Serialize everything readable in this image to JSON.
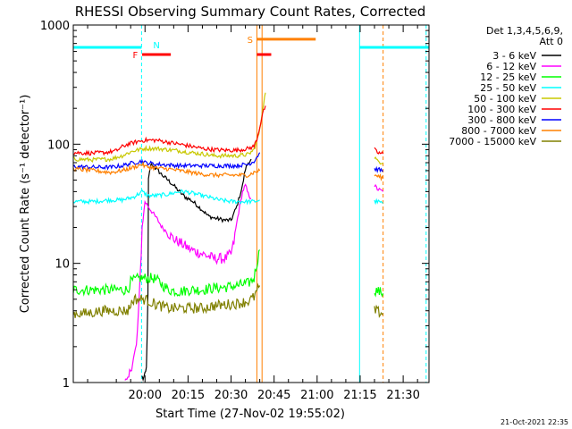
{
  "chart_data": {
    "type": "line",
    "title": "RHESSI Observing Summary Count Rates, Corrected",
    "xlabel": "Start Time (27-Nov-02 19:55:02)",
    "ylabel": "Corrected Count Rate (s⁻¹ detector⁻¹)",
    "ylog": true,
    "ylim": [
      1,
      1000
    ],
    "xlim_minutes": [
      -25.0,
      99.0
    ],
    "x_ticks": [
      {
        "t": 0,
        "label": "20:00"
      },
      {
        "t": 15,
        "label": "20:15"
      },
      {
        "t": 30,
        "label": "20:30"
      },
      {
        "t": 45,
        "label": "20:45"
      },
      {
        "t": 60,
        "label": "21:00"
      },
      {
        "t": 75,
        "label": "21:15"
      },
      {
        "t": 90,
        "label": "21:30"
      }
    ],
    "y_ticks": [
      {
        "v": 1,
        "label": "1"
      },
      {
        "v": 10,
        "label": "10"
      },
      {
        "v": 100,
        "label": "100"
      },
      {
        "v": 1000,
        "label": "1000"
      }
    ],
    "legend_header": [
      "Det 1,3,4,5,6,9,",
      "Att 0"
    ],
    "series": [
      {
        "name": "3 - 6 keV",
        "color": "#000000",
        "segments": [
          [
            [
              -1,
              1.1
            ],
            [
              0,
              1.1
            ],
            [
              0.5,
              1.3
            ],
            [
              1,
              5
            ],
            [
              1.2,
              50
            ],
            [
              2,
              68
            ],
            [
              4,
              62
            ],
            [
              6,
              55
            ],
            [
              8,
              50
            ],
            [
              10,
              45
            ],
            [
              12,
              40
            ],
            [
              14,
              36
            ],
            [
              16,
              34
            ],
            [
              18,
              31
            ],
            [
              20,
              28
            ],
            [
              22,
              25
            ],
            [
              24,
              24
            ],
            [
              26,
              23.5
            ],
            [
              28,
              23
            ],
            [
              30,
              23
            ],
            [
              32,
              30
            ],
            [
              34,
              45
            ],
            [
              35,
              62
            ],
            [
              36,
              70
            ],
            [
              37,
              75
            ]
          ]
        ]
      },
      {
        "name": "6 - 12 keV",
        "color": "#ff00ff",
        "segments": [
          [
            [
              -7,
              1
            ],
            [
              -6,
              1
            ],
            [
              -5,
              1.3
            ],
            [
              -4,
              1.6
            ],
            [
              -3,
              2
            ],
            [
              -2,
              5
            ],
            [
              -1,
              20
            ],
            [
              0,
              33
            ],
            [
              2,
              28
            ],
            [
              4,
              24
            ],
            [
              6,
              20
            ],
            [
              8,
              18
            ],
            [
              10,
              16
            ],
            [
              12,
              15
            ],
            [
              14,
              14
            ],
            [
              16,
              13
            ],
            [
              18,
              12.5
            ],
            [
              20,
              12
            ],
            [
              22,
              11.5
            ],
            [
              24,
              11
            ],
            [
              26,
              11
            ],
            [
              28,
              11
            ],
            [
              30,
              12
            ],
            [
              31,
              15
            ],
            [
              32,
              22
            ],
            [
              33,
              30
            ],
            [
              34,
              40
            ],
            [
              35,
              45
            ],
            [
              36,
              38
            ],
            [
              37,
              35
            ]
          ],
          [
            [
              80,
              45
            ],
            [
              81,
              42
            ],
            [
              82,
              41
            ],
            [
              83,
              40
            ]
          ]
        ]
      },
      {
        "name": "12 - 25 keV",
        "color": "#00ff00",
        "segments": [
          [
            [
              -25,
              6
            ],
            [
              -15,
              6
            ],
            [
              -10,
              6
            ],
            [
              -6,
              6
            ],
            [
              -5,
              7
            ],
            [
              -2,
              7.5
            ],
            [
              0,
              7.5
            ],
            [
              3,
              7.5
            ],
            [
              5,
              7
            ],
            [
              8,
              6
            ],
            [
              12,
              5.8
            ],
            [
              16,
              6
            ],
            [
              20,
              6
            ],
            [
              24,
              6.2
            ],
            [
              28,
              6.3
            ],
            [
              32,
              6.5
            ],
            [
              36,
              6.8
            ],
            [
              38,
              7.5
            ],
            [
              39,
              10
            ],
            [
              40,
              13
            ]
          ],
          [
            [
              80,
              6
            ],
            [
              83,
              5.6
            ]
          ]
        ]
      },
      {
        "name": "25 - 50 keV",
        "color": "#00ffff",
        "segments": [
          [
            [
              -25,
              33
            ],
            [
              -18,
              33
            ],
            [
              -12,
              34
            ],
            [
              -8,
              34
            ],
            [
              -4,
              36
            ],
            [
              -1,
              40
            ],
            [
              1,
              37
            ],
            [
              4,
              37
            ],
            [
              8,
              38
            ],
            [
              12,
              40
            ],
            [
              14,
              40
            ],
            [
              18,
              38
            ],
            [
              22,
              36
            ],
            [
              26,
              34
            ],
            [
              30,
              33
            ],
            [
              34,
              33
            ],
            [
              38,
              33
            ],
            [
              40,
              34
            ]
          ],
          [
            [
              80,
              33
            ],
            [
              81,
              33
            ],
            [
              83,
              32
            ]
          ]
        ]
      },
      {
        "name": "50 - 100 keV",
        "color": "#c8c800",
        "segments": [
          [
            [
              -25,
              75
            ],
            [
              -18,
              74
            ],
            [
              -12,
              75
            ],
            [
              -8,
              80
            ],
            [
              -6,
              84
            ],
            [
              -4,
              88
            ],
            [
              -2,
              90
            ],
            [
              0,
              92
            ],
            [
              4,
              92
            ],
            [
              8,
              90
            ],
            [
              12,
              88
            ],
            [
              16,
              85
            ],
            [
              20,
              83
            ],
            [
              24,
              80
            ],
            [
              28,
              80
            ],
            [
              32,
              80
            ],
            [
              36,
              82
            ],
            [
              38,
              90
            ],
            [
              40,
              130
            ],
            [
              41,
              200
            ],
            [
              42,
              270
            ]
          ],
          [
            [
              80,
              78
            ],
            [
              81,
              72
            ],
            [
              83,
              70
            ]
          ]
        ]
      },
      {
        "name": "100 - 300 keV",
        "color": "#ff0000",
        "segments": [
          [
            [
              -25,
              85
            ],
            [
              -18,
              84
            ],
            [
              -14,
              85
            ],
            [
              -10,
              88
            ],
            [
              -8,
              95
            ],
            [
              -6,
              100
            ],
            [
              -4,
              103
            ],
            [
              -2,
              106
            ],
            [
              0,
              108
            ],
            [
              4,
              108
            ],
            [
              8,
              104
            ],
            [
              12,
              100
            ],
            [
              16,
              96
            ],
            [
              20,
              92
            ],
            [
              24,
              90
            ],
            [
              28,
              89
            ],
            [
              32,
              89
            ],
            [
              36,
              92
            ],
            [
              38,
              96
            ],
            [
              39,
              110
            ],
            [
              40,
              140
            ],
            [
              41,
              180
            ],
            [
              42,
              210
            ]
          ],
          [
            [
              80,
              90
            ],
            [
              81,
              85
            ],
            [
              83,
              83
            ]
          ]
        ]
      },
      {
        "name": "300 - 800 keV",
        "color": "#0000ff",
        "segments": [
          [
            [
              -25,
              65
            ],
            [
              -18,
              64
            ],
            [
              -12,
              64
            ],
            [
              -8,
              66
            ],
            [
              -4,
              70
            ],
            [
              -1,
              72
            ],
            [
              0,
              70
            ],
            [
              4,
              68
            ],
            [
              8,
              67
            ],
            [
              12,
              66
            ],
            [
              16,
              66
            ],
            [
              20,
              66
            ],
            [
              24,
              66
            ],
            [
              28,
              66
            ],
            [
              32,
              66
            ],
            [
              36,
              68
            ],
            [
              38,
              72
            ],
            [
              40,
              85
            ]
          ],
          [
            [
              80,
              62
            ],
            [
              83,
              60
            ]
          ]
        ]
      },
      {
        "name": "800 - 7000 keV",
        "color": "#ff8000",
        "segments": [
          [
            [
              -25,
              62
            ],
            [
              -18,
              60
            ],
            [
              -12,
              58
            ],
            [
              -8,
              60
            ],
            [
              -4,
              64
            ],
            [
              -1,
              68
            ],
            [
              0,
              65
            ],
            [
              4,
              63
            ],
            [
              8,
              62
            ],
            [
              12,
              60
            ],
            [
              16,
              58
            ],
            [
              20,
              56
            ],
            [
              24,
              55
            ],
            [
              28,
              55
            ],
            [
              32,
              55
            ],
            [
              36,
              55
            ],
            [
              38,
              58
            ],
            [
              40,
              60
            ]
          ],
          [
            [
              80,
              55
            ],
            [
              83,
              52
            ]
          ]
        ]
      },
      {
        "name": "7000 - 15000 keV",
        "color": "#808000",
        "segments": [
          [
            [
              -25,
              3.8
            ],
            [
              -20,
              3.8
            ],
            [
              -15,
              4
            ],
            [
              -10,
              4
            ],
            [
              -6,
              4
            ],
            [
              -5,
              4.5
            ],
            [
              -4,
              5
            ],
            [
              0,
              5
            ],
            [
              4,
              4.5
            ],
            [
              8,
              4.2
            ],
            [
              12,
              4.2
            ],
            [
              16,
              4.2
            ],
            [
              20,
              4.2
            ],
            [
              24,
              4.4
            ],
            [
              28,
              4.5
            ],
            [
              32,
              4.6
            ],
            [
              36,
              4.8
            ],
            [
              38,
              5.2
            ],
            [
              40,
              6.5
            ]
          ],
          [
            [
              80,
              4
            ],
            [
              83,
              3.8
            ]
          ]
        ]
      }
    ],
    "status_bars": [
      {
        "label": "",
        "color": "#00ffff",
        "y": 650,
        "spans": [
          [
            -25,
            -1.2
          ],
          [
            74.8,
            99
          ]
        ]
      },
      {
        "label": "N",
        "color": "#00ffff",
        "y": 650,
        "spans": []
      },
      {
        "label": "F",
        "color": "#ff0000",
        "y": 565,
        "spans": [
          [
            -1,
            9
          ],
          [
            39,
            44
          ]
        ]
      },
      {
        "label": "S",
        "color": "#ff8000",
        "y": 760,
        "spans": [
          [
            39,
            59.5
          ]
        ]
      }
    ],
    "status_markers": [
      {
        "label": "N",
        "color": "#00ffff",
        "t": 1.5
      },
      {
        "label": "F",
        "color": "#ff0000",
        "t": -1.5
      },
      {
        "label": "S",
        "color": "#ff8000",
        "t": 38.5
      }
    ],
    "vertical_lines": [
      {
        "t": -1.2,
        "color": "#00ffff",
        "style": "dashed"
      },
      {
        "t": 39.0,
        "color": "#ff8000",
        "style": "solid"
      },
      {
        "t": 40.8,
        "color": "#ff8000",
        "style": "solid"
      },
      {
        "t": 74.8,
        "color": "#00ffff",
        "style": "solid"
      },
      {
        "t": 83.0,
        "color": "#ff8000",
        "style": "dashed"
      },
      {
        "t": 98.0,
        "color": "#00ffff",
        "style": "dashed"
      }
    ],
    "grid": false,
    "legend_placement": "top-right"
  },
  "footer": {
    "timestamp": "21-Oct-2021 22:35"
  }
}
